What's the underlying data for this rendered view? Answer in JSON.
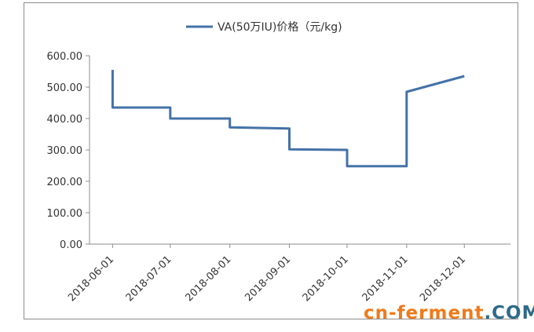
{
  "chart_data": {
    "type": "line",
    "legend": "VA(50万IU)价格（元/kg)",
    "legend_position": "top-center",
    "series": [
      {
        "name": "VA(50万IU)价格（元/kg)",
        "color": "#4472a8",
        "points": [
          [
            "2018-06-01",
            555
          ],
          [
            "2018-06-01",
            435
          ],
          [
            "2018-07-01",
            435
          ],
          [
            "2018-07-01",
            400
          ],
          [
            "2018-08-01",
            400
          ],
          [
            "2018-08-01",
            372
          ],
          [
            "2018-09-01",
            368
          ],
          [
            "2018-09-01",
            302
          ],
          [
            "2018-10-01",
            300
          ],
          [
            "2018-10-01",
            248
          ],
          [
            "2018-11-01",
            248
          ],
          [
            "2018-11-01",
            485
          ],
          [
            "2018-12-01",
            535
          ]
        ]
      }
    ],
    "x_ticks": [
      "2018-06-01",
      "2018-07-01",
      "2018-08-01",
      "2018-09-01",
      "2018-10-01",
      "2018-11-01",
      "2018-12-01"
    ],
    "y_ticks": [
      "0.00",
      "100.00",
      "200.00",
      "300.00",
      "400.00",
      "500.00",
      "600.00"
    ],
    "ylim": [
      0,
      600
    ],
    "grid": false
  },
  "watermark": {
    "part1": "cn-ferment",
    "part2": ".COM"
  }
}
